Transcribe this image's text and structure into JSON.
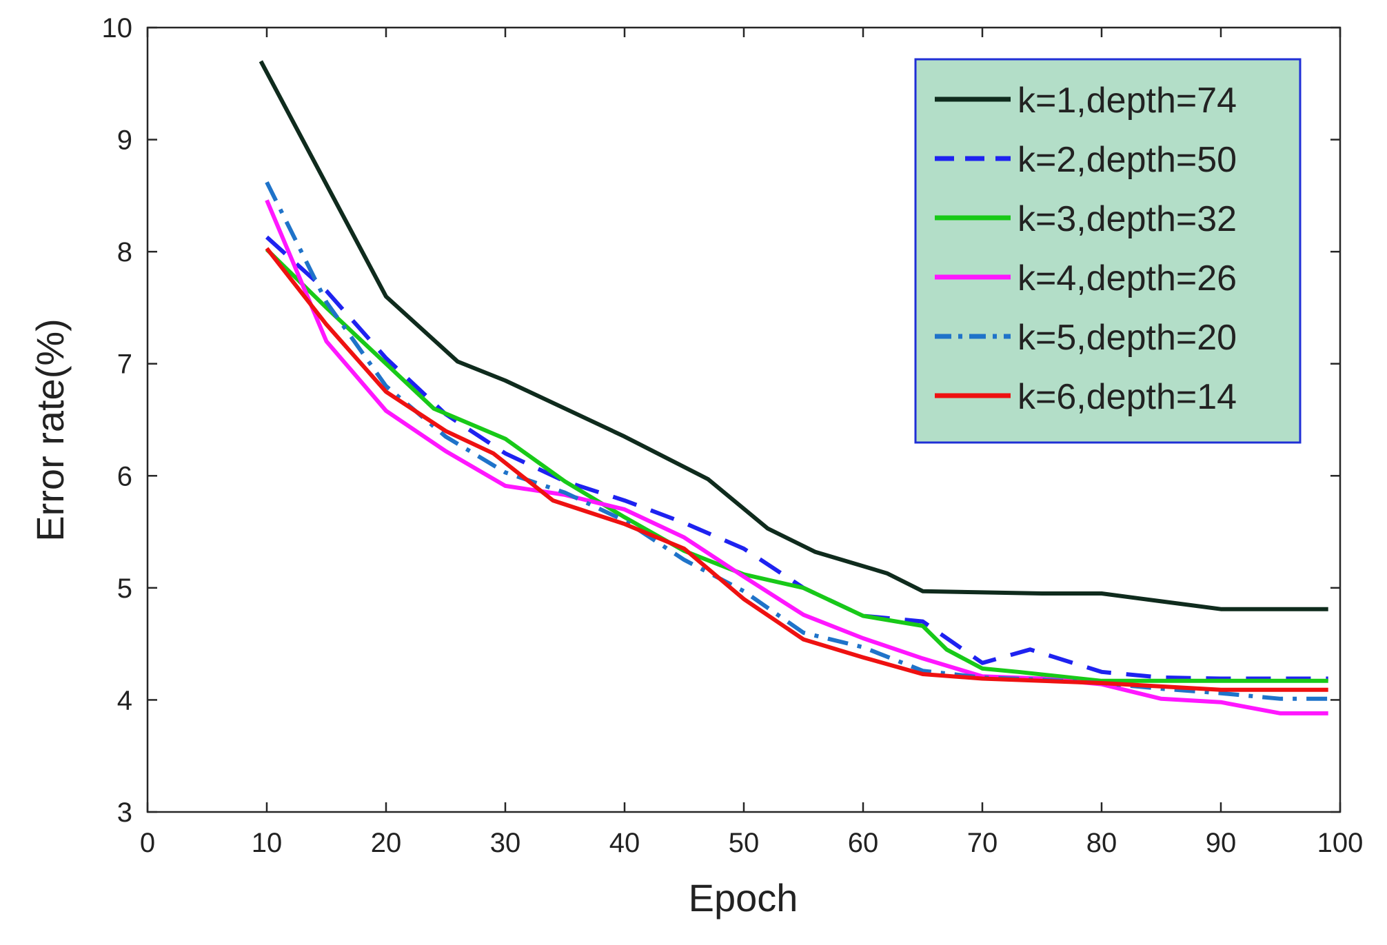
{
  "chart_data": {
    "type": "line",
    "title": "",
    "xlabel": "Epoch",
    "ylabel": "Error rate(%)",
    "xlim": [
      0,
      100
    ],
    "ylim": [
      3,
      10
    ],
    "xticks": [
      0,
      10,
      20,
      30,
      40,
      50,
      60,
      70,
      80,
      90,
      100
    ],
    "yticks": [
      3,
      4,
      5,
      6,
      7,
      8,
      9,
      10
    ],
    "grid": false,
    "legend_position": "top-right",
    "legend_background": "#b3dec8",
    "legend_border": "#1f2fd6",
    "series": [
      {
        "name": "k=1,depth=74",
        "color": "#0f2b1d",
        "style": "solid",
        "x": [
          9.5,
          20,
          26,
          30,
          35,
          40,
          47,
          52,
          56,
          62,
          65,
          70,
          75,
          80,
          85,
          90,
          99
        ],
        "y": [
          9.7,
          7.6,
          7.02,
          6.85,
          6.6,
          6.35,
          5.97,
          5.53,
          5.32,
          5.13,
          4.97,
          4.96,
          4.95,
          4.95,
          4.88,
          4.81,
          4.81
        ]
      },
      {
        "name": "k=2,depth=50",
        "color": "#1e22f0",
        "style": "dashed",
        "x": [
          10,
          15,
          20,
          25,
          30,
          35,
          40,
          45,
          50,
          55,
          60,
          65,
          70,
          74,
          80,
          85,
          90,
          99
        ],
        "y": [
          8.13,
          7.65,
          7.05,
          6.55,
          6.2,
          5.95,
          5.78,
          5.58,
          5.35,
          5.0,
          4.75,
          4.7,
          4.33,
          4.45,
          4.25,
          4.2,
          4.19,
          4.19
        ]
      },
      {
        "name": "k=3,depth=32",
        "color": "#18c918",
        "style": "solid",
        "x": [
          10,
          15,
          20,
          24,
          30,
          35,
          40,
          45,
          50,
          55,
          60,
          65,
          67,
          70,
          73,
          80,
          90,
          99
        ],
        "y": [
          8.02,
          7.5,
          7.0,
          6.6,
          6.33,
          5.95,
          5.63,
          5.33,
          5.12,
          5.0,
          4.75,
          4.66,
          4.45,
          4.28,
          4.25,
          4.17,
          4.17,
          4.17
        ]
      },
      {
        "name": "k=4,depth=26",
        "color": "#ff17ff",
        "style": "solid",
        "x": [
          10,
          15,
          20,
          25,
          30,
          35,
          40,
          45,
          50,
          55,
          60,
          65,
          70,
          75,
          80,
          85,
          90,
          95,
          99
        ],
        "y": [
          8.46,
          7.2,
          6.58,
          6.22,
          5.91,
          5.83,
          5.7,
          5.45,
          5.1,
          4.76,
          4.55,
          4.37,
          4.21,
          4.19,
          4.14,
          4.01,
          3.98,
          3.88,
          3.88
        ]
      },
      {
        "name": "k=5,depth=20",
        "color": "#1f73c9",
        "style": "dashdot",
        "x": [
          10,
          15,
          20,
          25,
          30,
          35,
          40,
          45,
          50,
          55,
          60,
          65,
          70,
          75,
          80,
          85,
          90,
          95,
          99
        ],
        "y": [
          8.62,
          7.55,
          6.8,
          6.35,
          6.03,
          5.85,
          5.6,
          5.25,
          4.97,
          4.6,
          4.47,
          4.26,
          4.2,
          4.18,
          4.15,
          4.1,
          4.06,
          4.01,
          4.01
        ]
      },
      {
        "name": "k=6,depth=14",
        "color": "#ee1111",
        "style": "solid",
        "x": [
          10,
          15,
          20,
          25,
          29,
          34,
          40,
          45,
          50,
          55,
          60,
          65,
          70,
          75,
          80,
          85,
          90,
          99
        ],
        "y": [
          8.03,
          7.35,
          6.75,
          6.4,
          6.2,
          5.78,
          5.57,
          5.35,
          4.9,
          4.54,
          4.38,
          4.23,
          4.19,
          4.17,
          4.15,
          4.12,
          4.09,
          4.09
        ]
      }
    ]
  }
}
